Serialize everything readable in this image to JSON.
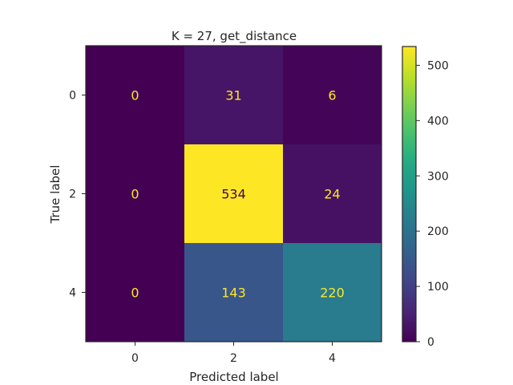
{
  "chart_data": {
    "type": "heatmap",
    "title": "K = 27, get_distance",
    "xlabel": "Predicted label",
    "ylabel": "True label",
    "x_categories": [
      "0",
      "2",
      "4"
    ],
    "y_categories": [
      "0",
      "2",
      "4"
    ],
    "matrix": [
      [
        0,
        31,
        6
      ],
      [
        0,
        534,
        24
      ],
      [
        0,
        143,
        220
      ]
    ],
    "colormap": "viridis",
    "vmin": 0,
    "vmax": 534,
    "colorbar_ticks": [
      0,
      100,
      200,
      300,
      400,
      500
    ],
    "annotation_colors": {
      "light": "#fde725",
      "dark": "#440154"
    }
  }
}
